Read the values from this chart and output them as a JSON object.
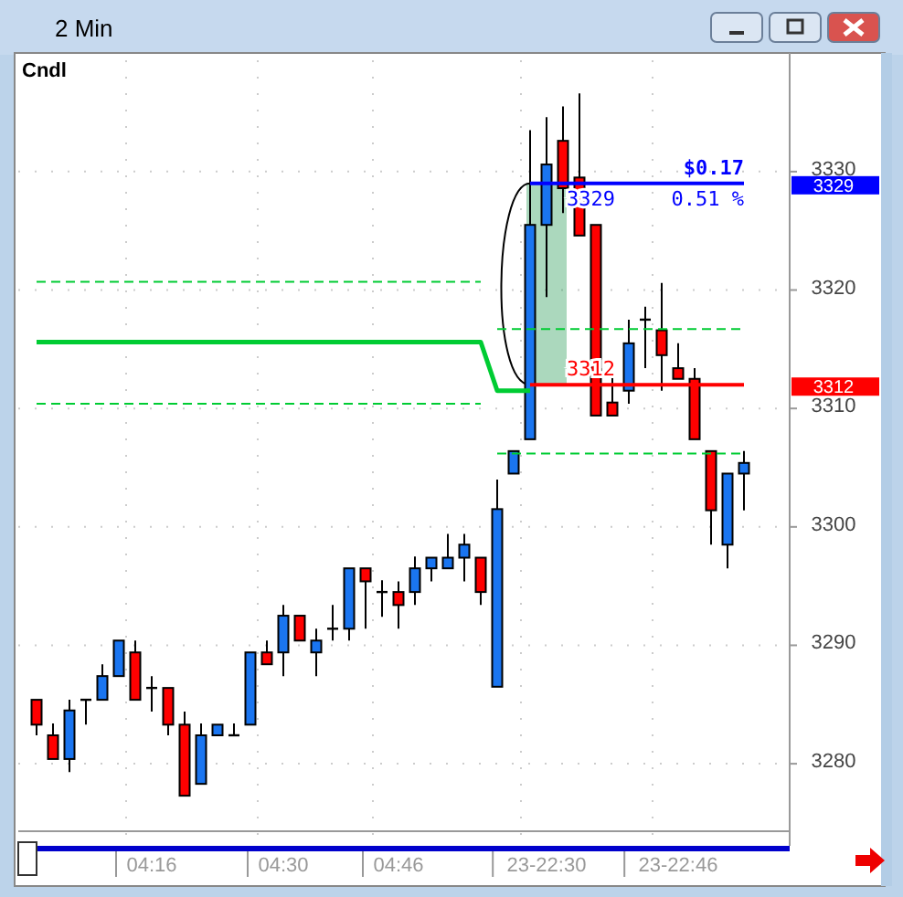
{
  "chart_data": {
    "type": "candlestick",
    "title": "2 Min",
    "subtitle": "Cndl",
    "categories": [
      null,
      null,
      null,
      null,
      null,
      null,
      null,
      "04:16",
      null,
      null,
      null,
      null,
      null,
      null,
      null,
      "04:30",
      null,
      null,
      null,
      null,
      null,
      null,
      "04:46",
      null,
      null,
      null,
      null,
      null,
      null,
      null,
      null,
      "23-22:30",
      null,
      null,
      null,
      null,
      null,
      null,
      null,
      "23-22:46",
      null,
      null,
      null,
      null
    ],
    "ohlc": [
      [
        3285.4,
        3285.4,
        3282.4,
        3283.3
      ],
      [
        3282.4,
        3283.4,
        3280.4,
        3280.4
      ],
      [
        3280.4,
        3285.4,
        3279.3,
        3284.5
      ],
      [
        3285.4,
        3285.4,
        3283.3,
        3285.4
      ],
      [
        3285.4,
        3288.4,
        3285.4,
        3287.4
      ],
      [
        3287.4,
        3290.4,
        3287.4,
        3290.4
      ],
      [
        3289.4,
        3290.4,
        3285.4,
        3285.4
      ],
      [
        3286.4,
        3287.4,
        3284.4,
        3286.4
      ],
      [
        3286.4,
        3286.4,
        3282.4,
        3283.3
      ],
      [
        3283.3,
        3284.4,
        3277.3,
        3277.3
      ],
      [
        3278.3,
        3283.4,
        3278.3,
        3282.4
      ],
      [
        3282.4,
        3283.3,
        3282.4,
        3283.3
      ],
      [
        3282.4,
        3283.4,
        3282.4,
        3282.4
      ],
      [
        3283.3,
        3289.4,
        3283.3,
        3289.4
      ],
      [
        3289.4,
        3290.4,
        3288.4,
        3288.4
      ],
      [
        3289.4,
        3293.4,
        3287.4,
        3292.5
      ],
      [
        3292.5,
        3292.5,
        3290.4,
        3290.4
      ],
      [
        3289.4,
        3291.4,
        3287.4,
        3290.4
      ],
      [
        3291.4,
        3293.4,
        3290.4,
        3291.4
      ],
      [
        3291.4,
        3296.5,
        3290.4,
        3296.5
      ],
      [
        3296.5,
        3296.5,
        3291.4,
        3295.4
      ],
      [
        3294.5,
        3295.5,
        3292.4,
        3294.5
      ],
      [
        3294.5,
        3295.4,
        3291.4,
        3293.4
      ],
      [
        3294.5,
        3297.5,
        3293.4,
        3296.5
      ],
      [
        3296.5,
        3297.4,
        3295.4,
        3297.4
      ],
      [
        3296.5,
        3299.4,
        3296.5,
        3297.4
      ],
      [
        3297.4,
        3299.4,
        3295.4,
        3298.5
      ],
      [
        3297.4,
        3297.4,
        3293.4,
        3294.5
      ],
      [
        3286.5,
        3304,
        3286.5,
        3301.5
      ],
      [
        3304.5,
        3306.4,
        3304.5,
        3306.4
      ],
      [
        3307.4,
        3333.5,
        3307.4,
        3325.5
      ],
      [
        3325.5,
        3334.6,
        3319.4,
        3330.6
      ],
      [
        3332.6,
        3335.5,
        3326.5,
        3328.6
      ],
      [
        3329.5,
        3336.6,
        3324.6,
        3324.6
      ],
      [
        3325.5,
        3325.5,
        3309.4,
        3309.4
      ],
      [
        3310.5,
        3312.6,
        3309.4,
        3309.4
      ],
      [
        3311.5,
        3317.5,
        3310.4,
        3315.5
      ],
      [
        3317.5,
        3318.6,
        3313.4,
        3317.5
      ],
      [
        3316.6,
        3320.6,
        3311.5,
        3314.5
      ],
      [
        3313.4,
        3315.5,
        3312.5,
        3312.5
      ],
      [
        3312.5,
        3313.4,
        3307.4,
        3307.4
      ],
      [
        3306.4,
        3306.4,
        3298.5,
        3301.4
      ],
      [
        3298.5,
        3304.5,
        3296.5,
        3304.5
      ],
      [
        3304.5,
        3306.4,
        3301.4,
        3305.4
      ]
    ],
    "colors": [
      "#ff0000",
      "#ff0000",
      "#1a75f0",
      "#000000",
      "#1a75f0",
      "#1a75f0",
      "#ff0000",
      "#000000",
      "#ff0000",
      "#ff0000",
      "#1a75f0",
      "#1a75f0",
      "#000000",
      "#1a75f0",
      "#ff0000",
      "#1a75f0",
      "#ff0000",
      "#1a75f0",
      "#000000",
      "#1a75f0",
      "#ff0000",
      "#000000",
      "#ff0000",
      "#1a75f0",
      "#1a75f0",
      "#1a75f0",
      "#1a75f0",
      "#ff0000",
      "#1a75f0",
      "#1a75f0",
      "#1a75f0",
      "#1a75f0",
      "#ff0000",
      "#ff0000",
      "#ff0000",
      "#ff0000",
      "#1a75f0",
      "#000000",
      "#ff0000",
      "#ff0000",
      "#ff0000",
      "#ff0000",
      "#1a75f0",
      "#1a75f0"
    ],
    "series": [
      {
        "type": "line",
        "color": "#00cc33",
        "line_style": "dashed",
        "values": [
          3320.7,
          3320.7,
          3320.7,
          3320.7,
          3320.7,
          3320.7,
          3320.7,
          3320.7,
          3320.7,
          3320.7,
          3320.7,
          3320.7,
          3320.7,
          3320.7,
          3320.7,
          3320.7,
          3320.7,
          3320.7,
          3320.7,
          3320.7,
          3320.7,
          3320.7,
          3320.7,
          3320.7,
          3320.7,
          3320.7,
          3320.7,
          3320.7,
          null,
          null,
          null,
          null,
          null,
          null,
          null,
          null,
          null,
          null,
          null,
          null,
          null,
          null,
          null,
          null
        ]
      },
      {
        "type": "line",
        "color": "#00cc33",
        "line_style": "dashed",
        "values": [
          3310.4,
          3310.4,
          3310.4,
          3310.4,
          3310.4,
          3310.4,
          3310.4,
          3310.4,
          3310.4,
          3310.4,
          3310.4,
          3310.4,
          3310.4,
          3310.4,
          3310.4,
          3310.4,
          3310.4,
          3310.4,
          3310.4,
          3310.4,
          3310.4,
          3310.4,
          3310.4,
          3310.4,
          3310.4,
          3310.4,
          3310.4,
          3310.4,
          null,
          null,
          null,
          null,
          null,
          null,
          null,
          null,
          null,
          null,
          null,
          null,
          null,
          null,
          null,
          null
        ]
      },
      {
        "type": "line",
        "color": "#00cc33",
        "line_style": "dashed",
        "values": [
          null,
          null,
          null,
          null,
          null,
          null,
          null,
          null,
          null,
          null,
          null,
          null,
          null,
          null,
          null,
          null,
          null,
          null,
          null,
          null,
          null,
          null,
          null,
          null,
          null,
          null,
          null,
          null,
          3316.7,
          3316.7,
          3316.7,
          3316.7,
          3316.7,
          3316.7,
          3316.7,
          3316.7,
          3316.7,
          3316.7,
          3316.7,
          3316.7,
          3316.7,
          3316.7,
          3316.7,
          3316.7
        ]
      },
      {
        "type": "line",
        "color": "#00cc33",
        "line_style": "dashed",
        "values": [
          null,
          null,
          null,
          null,
          null,
          null,
          null,
          null,
          null,
          null,
          null,
          null,
          null,
          null,
          null,
          null,
          null,
          null,
          null,
          null,
          null,
          null,
          null,
          null,
          null,
          null,
          null,
          null,
          3306.2,
          3306.2,
          3306.2,
          3306.2,
          3306.2,
          3306.2,
          3306.2,
          3306.2,
          3306.2,
          3306.2,
          3306.2,
          3306.2,
          3306.2,
          3306.2,
          3306.2,
          3306.2
        ]
      },
      {
        "type": "line",
        "color": "#00cc33",
        "line_style": "solid",
        "values": [
          3315.6,
          3315.6,
          3315.6,
          3315.6,
          3315.6,
          3315.6,
          3315.6,
          3315.6,
          3315.6,
          3315.6,
          3315.6,
          3315.6,
          3315.6,
          3315.6,
          3315.6,
          3315.6,
          3315.6,
          3315.6,
          3315.6,
          3315.6,
          3315.6,
          3315.6,
          3315.6,
          3315.6,
          3315.6,
          3315.6,
          3315.6,
          3315.6,
          3311.5,
          3311.5,
          3311.5,
          null,
          null,
          null,
          null,
          null,
          null,
          null,
          null,
          null,
          null,
          null,
          null,
          null
        ]
      },
      {
        "type": "line",
        "name": "3329",
        "color": "#0000ff",
        "line_style": "solid",
        "values": [
          null,
          null,
          null,
          null,
          null,
          null,
          null,
          null,
          null,
          null,
          null,
          null,
          null,
          null,
          null,
          null,
          null,
          null,
          null,
          null,
          null,
          null,
          null,
          null,
          null,
          null,
          null,
          null,
          null,
          null,
          3329,
          3329,
          3329,
          3329,
          3329,
          3329,
          3329,
          3329,
          3329,
          3329,
          3329,
          3329,
          3329,
          3329
        ]
      },
      {
        "type": "line",
        "name": "3312",
        "color": "#ff0000",
        "line_style": "solid",
        "values": [
          null,
          null,
          null,
          null,
          null,
          null,
          null,
          null,
          null,
          null,
          null,
          null,
          null,
          null,
          null,
          null,
          null,
          null,
          null,
          null,
          null,
          null,
          null,
          null,
          null,
          null,
          null,
          null,
          null,
          null,
          3312,
          3312,
          3312,
          3312,
          3312,
          3312,
          3312,
          3312,
          3312,
          3312,
          3312,
          3312,
          3312,
          3312
        ]
      }
    ],
    "annotations": [
      "$0.17",
      "0.51 %"
    ],
    "ylim": [
      3274.3,
      3339.4
    ],
    "yticks": [
      3280,
      3290,
      3300,
      3310,
      3320,
      3330
    ],
    "grid": true
  }
}
